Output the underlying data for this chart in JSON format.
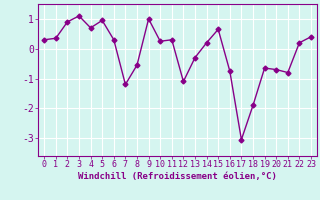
{
  "x": [
    0,
    1,
    2,
    3,
    4,
    5,
    6,
    7,
    8,
    9,
    10,
    11,
    12,
    13,
    14,
    15,
    16,
    17,
    18,
    19,
    20,
    21,
    22,
    23
  ],
  "y": [
    0.3,
    0.35,
    0.9,
    1.1,
    0.7,
    0.95,
    0.3,
    -1.2,
    -0.55,
    1.0,
    0.25,
    0.3,
    -1.1,
    -0.3,
    0.2,
    0.65,
    -0.75,
    -3.05,
    -1.9,
    -0.65,
    -0.7,
    -0.8,
    0.2,
    0.4
  ],
  "line_color": "#880088",
  "marker": "D",
  "marker_size": 2.5,
  "linewidth": 1.0,
  "xlabel": "Windchill (Refroidissement éolien,°C)",
  "xlabel_fontsize": 6.5,
  "xtick_labels": [
    "0",
    "1",
    "2",
    "3",
    "4",
    "5",
    "6",
    "7",
    "8",
    "9",
    "10",
    "11",
    "12",
    "13",
    "14",
    "15",
    "16",
    "17",
    "18",
    "19",
    "20",
    "21",
    "22",
    "23"
  ],
  "ytick_vals": [
    -3,
    -2,
    -1,
    0,
    1
  ],
  "ylim": [
    -3.6,
    1.5
  ],
  "xlim": [
    -0.5,
    23.5
  ],
  "bg_color": "#d5f5f0",
  "grid_color": "#ffffff",
  "tick_color": "#880088",
  "tick_fontsize": 6,
  "spine_color": "#880088"
}
